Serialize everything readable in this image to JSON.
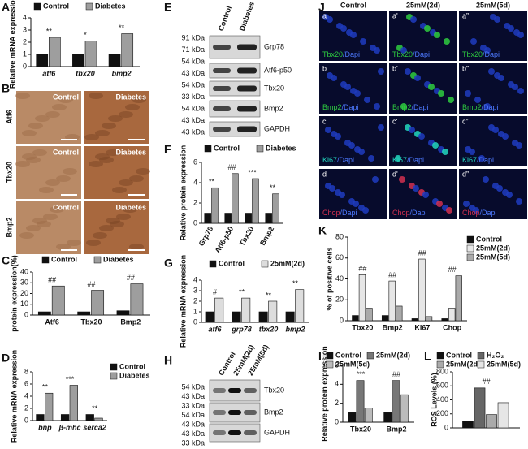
{
  "panel_labels": [
    "A",
    "B",
    "C",
    "D",
    "E",
    "F",
    "G",
    "H",
    "I",
    "J",
    "K",
    "L"
  ],
  "chart_data": [
    {
      "type": "bar",
      "ylabel": "Relative mRNA expression",
      "categories": [
        "atf6",
        "tbx20",
        "bmp2"
      ],
      "series": [
        {
          "name": "Control",
          "color": "#111111",
          "values": [
            1,
            1,
            1
          ]
        },
        {
          "name": "Diabetes",
          "color": "#9e9e9e",
          "values": [
            2.4,
            2.1,
            2.7
          ]
        }
      ],
      "annotations": [
        "**",
        "*",
        "**"
      ],
      "ylim": [
        0,
        4
      ],
      "yticks": [
        0,
        1,
        2,
        3,
        4
      ]
    },
    {
      "type": "bar",
      "ylabel": "protein expression(%)",
      "categories": [
        "Atf6",
        "Tbx20",
        "Bmp2"
      ],
      "series": [
        {
          "name": "Control",
          "color": "#111111",
          "values": [
            3,
            3,
            4
          ]
        },
        {
          "name": "Diabetes",
          "color": "#9e9e9e",
          "values": [
            27,
            23,
            29
          ]
        }
      ],
      "annotations": [
        "##",
        "##",
        "##"
      ],
      "ylim": [
        0,
        40
      ],
      "yticks": [
        0,
        10,
        20,
        30,
        40
      ]
    },
    {
      "type": "bar",
      "ylabel": "Relative mRNA expression",
      "categories": [
        "bnp",
        "β-mhc",
        "serca2"
      ],
      "series": [
        {
          "name": "Control",
          "color": "#111111",
          "values": [
            1,
            1,
            1
          ]
        },
        {
          "name": "Diabetes",
          "color": "#9e9e9e",
          "values": [
            4.5,
            5.8,
            0.4
          ]
        }
      ],
      "annotations": [
        "**",
        "***",
        "**"
      ],
      "ylim": [
        0,
        8
      ],
      "yticks": [
        0,
        2,
        4,
        6,
        8
      ]
    },
    {
      "type": "bar",
      "ylabel": "Relative protein expression",
      "categories": [
        "Grp78",
        "Atf6-p50",
        "Tbx20",
        "Bmp2"
      ],
      "series": [
        {
          "name": "Control",
          "color": "#111111",
          "values": [
            1,
            1,
            1,
            1
          ]
        },
        {
          "name": "Diabetes",
          "color": "#9e9e9e",
          "values": [
            3.5,
            4.9,
            4.4,
            2.9
          ]
        }
      ],
      "annotations": [
        "**",
        "##",
        "***",
        "**"
      ],
      "ylim": [
        0,
        6
      ],
      "yticks": [
        0,
        2,
        4,
        6
      ]
    },
    {
      "type": "bar",
      "ylabel": "Relative mRNA expression",
      "categories": [
        "atf6",
        "grp78",
        "tbx20",
        "bmp2"
      ],
      "series": [
        {
          "name": "Control",
          "color": "#111111",
          "values": [
            1,
            1,
            1,
            1
          ]
        },
        {
          "name": "25mM(2d)",
          "color": "#dddddd",
          "values": [
            2.3,
            2.3,
            2.0,
            3.1
          ]
        }
      ],
      "annotations": [
        "#",
        "**",
        "**",
        "**"
      ],
      "ylim": [
        0,
        4
      ],
      "yticks": [
        0,
        1,
        2,
        3,
        4
      ]
    },
    {
      "type": "bar",
      "ylabel": "Relative protein expression",
      "categories": [
        "Tbx20",
        "Bmp2"
      ],
      "series": [
        {
          "name": "Control",
          "color": "#111111",
          "values": [
            1,
            1
          ]
        },
        {
          "name": "25mM(2d)",
          "color": "#777777",
          "values": [
            4.4,
            4.4
          ]
        },
        {
          "name": "25mM(5d)",
          "color": "#bbbbbb",
          "values": [
            1.5,
            2.9
          ]
        }
      ],
      "annotations": [
        "***",
        "##"
      ],
      "ylim": [
        0,
        6
      ],
      "yticks": [
        0,
        2,
        4,
        6
      ]
    },
    {
      "type": "bar",
      "ylabel": "% of positive cells",
      "categories": [
        "Tbx20",
        "Bmp2",
        "Ki67",
        "Chop"
      ],
      "series": [
        {
          "name": "Control",
          "color": "#111111",
          "values": [
            5,
            5,
            2,
            2
          ]
        },
        {
          "name": "25mM(2d)",
          "color": "#e6e6e6",
          "values": [
            44,
            38,
            59,
            12
          ]
        },
        {
          "name": "25mM(5d)",
          "color": "#aaaaaa",
          "values": [
            12,
            14,
            4,
            43
          ]
        }
      ],
      "annotations": [
        "##",
        "##",
        "##",
        "##"
      ],
      "ylim": [
        0,
        80
      ],
      "yticks": [
        0,
        20,
        40,
        60,
        80
      ]
    },
    {
      "type": "bar",
      "ylabel": "ROS Levels (%)",
      "categories": [
        null
      ],
      "series": [
        {
          "name": "Control",
          "color": "#111111",
          "values": [
            100
          ]
        },
        {
          "name": "H₂O₂",
          "color": "#666666",
          "values": [
            570
          ]
        },
        {
          "name": "25mM(2d)",
          "color": "#aaaaaa",
          "values": [
            190
          ]
        },
        {
          "name": "25mM(5d)",
          "color": "#e6e6e6",
          "values": [
            360
          ]
        }
      ],
      "annotations": [
        "##"
      ],
      "ylim": [
        0,
        800
      ],
      "yticks": [
        0,
        200,
        400,
        600,
        800
      ]
    }
  ],
  "histology": {
    "columns": [
      "Control",
      "Diabetes"
    ],
    "rows": [
      "Atf6",
      "Tbx20",
      "Bmp2"
    ]
  },
  "blot_E": {
    "lanes": [
      "Control",
      "Diabetes"
    ],
    "markers": [
      "91 kDa",
      "71 kDa",
      "54 kDa",
      "43 kDa",
      "54 kDa",
      "33 kDa",
      "54 kDa",
      "43 kDa",
      "43 kDa"
    ],
    "bands": [
      "Grp78",
      "Atf6-p50",
      "Tbx20",
      "Bmp2",
      "GAPDH"
    ]
  },
  "blot_H": {
    "lanes": [
      "Control",
      "25mM(2d)",
      "25mM(5d)"
    ],
    "markers": [
      "54 kDa",
      "43 kDa",
      "33 kDa",
      "54 kDa",
      "43 kDa",
      "43 kDa",
      "33 kDa"
    ],
    "bands": [
      "Tbx20",
      "Bmp2",
      "GAPDH"
    ]
  },
  "immunofluorescence": {
    "columns": [
      "Control",
      "25mM(2d)",
      "25mM(5d)"
    ],
    "rows": [
      {
        "cells": [
          "a",
          "a'",
          "a”"
        ],
        "stain": "Tbx20",
        "counter": "/Dapi"
      },
      {
        "cells": [
          "b",
          "b'",
          "b”"
        ],
        "stain": "Bmp2",
        "counter": "/Dapi"
      },
      {
        "cells": [
          "c",
          "c'",
          "c”"
        ],
        "stain": "Ki67",
        "counter": "/Dapi"
      },
      {
        "cells": [
          "d",
          "d'",
          "d”"
        ],
        "stain": "Chop",
        "counter": "/Dapi"
      }
    ]
  }
}
